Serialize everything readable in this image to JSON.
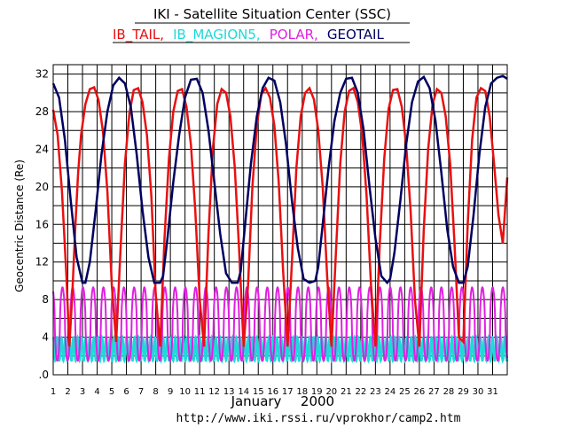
{
  "chart_data": {
    "type": "line",
    "title": "IKI - Satellite Situation Center (SSC)",
    "legend": [
      "IB_TAIL,",
      "IB_MAGION5,",
      "POLAR,",
      "GEOTAIL"
    ],
    "ylabel": "Geocentric Distance (Re)",
    "xlabel": "January",
    "year": "2000",
    "url": "http://www.iki.rssi.ru/vprokhor/camp2.htm",
    "ylim": [
      0,
      33
    ],
    "xlim": [
      1,
      32
    ],
    "y_ticks": [
      ".0",
      "4",
      "8",
      "12",
      "16",
      "20",
      "24",
      "28",
      "32"
    ],
    "x_ticks": [
      "1",
      "2",
      "3",
      "4",
      "5",
      "6",
      "7",
      "8",
      "9",
      "10",
      "11",
      "12",
      "13",
      "14",
      "15",
      "16",
      "17",
      "18",
      "19",
      "20",
      "21",
      "22",
      "23",
      "24",
      "25",
      "26",
      "27",
      "28",
      "29",
      "30",
      "31"
    ],
    "grid": true,
    "legend_position": "top",
    "colors": {
      "IB_TAIL": "#e81010",
      "IB_MAGION5": "#20d8d8",
      "POLAR": "#e020e0",
      "GEOTAIL": "#000060",
      "grid": "#000000"
    },
    "series": [
      {
        "name": "IB_TAIL",
        "color": "#e81010",
        "x": [
          1.0,
          1.3,
          1.6,
          1.9,
          2.1,
          2.3,
          2.5,
          2.7,
          2.9,
          3.2,
          3.5,
          3.8,
          4.1,
          4.4,
          4.7,
          5.0,
          5.3,
          5.6,
          5.9,
          6.2,
          6.5,
          6.8,
          7.1,
          7.4,
          7.7,
          8.0,
          8.3,
          8.6,
          8.9,
          9.2,
          9.5,
          9.8,
          10.1,
          10.4,
          10.7,
          11.0,
          11.3,
          11.6,
          11.9,
          12.2,
          12.5,
          12.8,
          13.1,
          13.4,
          13.7,
          14.0,
          14.3,
          14.6,
          14.9,
          15.2,
          15.5,
          15.8,
          16.1,
          16.4,
          16.7,
          17.0,
          17.3,
          17.6,
          17.9,
          18.2,
          18.5,
          18.8,
          19.1,
          19.4,
          19.7,
          20.0,
          20.3,
          20.6,
          20.9,
          21.2,
          21.5,
          21.8,
          22.1,
          22.4,
          22.7,
          23.0,
          23.3,
          23.6,
          23.9,
          24.2,
          24.5,
          24.8,
          25.1,
          25.4,
          25.7,
          26.0,
          26.3,
          26.6,
          26.9,
          27.2,
          27.5,
          27.8,
          28.1,
          28.4,
          28.7,
          29.0,
          29.3,
          29.6,
          29.9,
          30.2,
          30.5,
          30.8,
          31.1,
          31.4,
          31.7,
          32.0
        ],
        "values": [
          28.2,
          25.5,
          19.5,
          10.5,
          3.0,
          8.5,
          15.5,
          21.5,
          25.5,
          28.8,
          30.4,
          30.6,
          29.2,
          25.8,
          19.5,
          9.5,
          3.5,
          13.5,
          22.5,
          27.8,
          30.3,
          30.5,
          29.0,
          25.5,
          19.0,
          8.5,
          3.0,
          14.5,
          23.0,
          28.0,
          30.2,
          30.4,
          28.5,
          24.5,
          17.5,
          8.0,
          3.0,
          15.0,
          24.0,
          28.8,
          30.4,
          30.0,
          27.5,
          22.0,
          13.0,
          3.0,
          9.5,
          20.0,
          26.5,
          29.8,
          30.5,
          29.5,
          26.5,
          20.5,
          11.0,
          3.0,
          12.0,
          22.0,
          27.5,
          30.0,
          30.5,
          29.3,
          26.0,
          20.0,
          10.5,
          3.0,
          13.0,
          22.5,
          28.0,
          30.2,
          30.5,
          29.0,
          25.5,
          19.0,
          9.5,
          3.0,
          14.0,
          23.0,
          28.3,
          30.3,
          30.4,
          28.5,
          24.5,
          17.5,
          8.0,
          3.0,
          15.5,
          24.0,
          28.8,
          30.4,
          30.0,
          27.5,
          22.5,
          14.0,
          4.0,
          3.5,
          16.0,
          25.0,
          29.5,
          30.5,
          30.2,
          27.5,
          22.5,
          17.0,
          14.0,
          21.0
        ]
      },
      {
        "name": "IB_MAGION5",
        "color": "#20d8d8",
        "baseline": 1.5,
        "peak": 4.0,
        "oscillations_per_day": 3.6
      },
      {
        "name": "POLAR",
        "color": "#e020e0",
        "baseline": 1.5,
        "peak": 9.3,
        "oscillations_per_day": 1.43
      },
      {
        "name": "GEOTAIL",
        "color": "#000060",
        "x": [
          1.0,
          1.4,
          1.8,
          2.2,
          2.6,
          3.0,
          3.2,
          3.5,
          3.9,
          4.3,
          4.7,
          5.1,
          5.5,
          5.9,
          6.3,
          6.7,
          7.1,
          7.5,
          7.9,
          8.3,
          8.5,
          8.8,
          9.2,
          9.6,
          10.0,
          10.4,
          10.8,
          11.2,
          11.6,
          12.0,
          12.4,
          12.8,
          13.2,
          13.6,
          13.8,
          14.1,
          14.5,
          14.9,
          15.3,
          15.7,
          16.1,
          16.5,
          16.9,
          17.3,
          17.7,
          18.1,
          18.5,
          18.9,
          19.1,
          19.4,
          19.8,
          20.2,
          20.6,
          21.0,
          21.4,
          21.8,
          22.2,
          22.6,
          23.0,
          23.4,
          23.8,
          24.0,
          24.3,
          24.7,
          25.1,
          25.5,
          25.9,
          26.3,
          26.7,
          27.1,
          27.5,
          27.9,
          28.3,
          28.7,
          29.0,
          29.3,
          29.7,
          30.1,
          30.5,
          30.9,
          31.3,
          31.7,
          32.0
        ],
        "values": [
          31.0,
          29.5,
          25.0,
          18.5,
          12.5,
          9.8,
          9.8,
          12.0,
          17.5,
          23.5,
          28.0,
          30.8,
          31.6,
          31.0,
          28.5,
          23.5,
          17.5,
          12.5,
          9.8,
          9.8,
          10.5,
          14.5,
          20.5,
          25.5,
          29.5,
          31.4,
          31.5,
          30.0,
          26.0,
          20.5,
          15.0,
          10.8,
          9.8,
          9.8,
          11.0,
          16.0,
          22.5,
          27.5,
          30.5,
          31.6,
          31.3,
          29.0,
          24.5,
          18.5,
          13.5,
          10.2,
          9.8,
          10.0,
          11.5,
          16.0,
          22.0,
          27.0,
          30.0,
          31.5,
          31.6,
          30.0,
          26.0,
          20.0,
          14.5,
          10.5,
          9.8,
          10.2,
          13.0,
          18.5,
          24.5,
          29.0,
          31.2,
          31.7,
          30.5,
          27.0,
          21.5,
          15.5,
          11.5,
          9.8,
          9.8,
          11.5,
          17.0,
          23.5,
          28.5,
          31.0,
          31.6,
          31.8,
          31.5
        ]
      }
    ]
  }
}
